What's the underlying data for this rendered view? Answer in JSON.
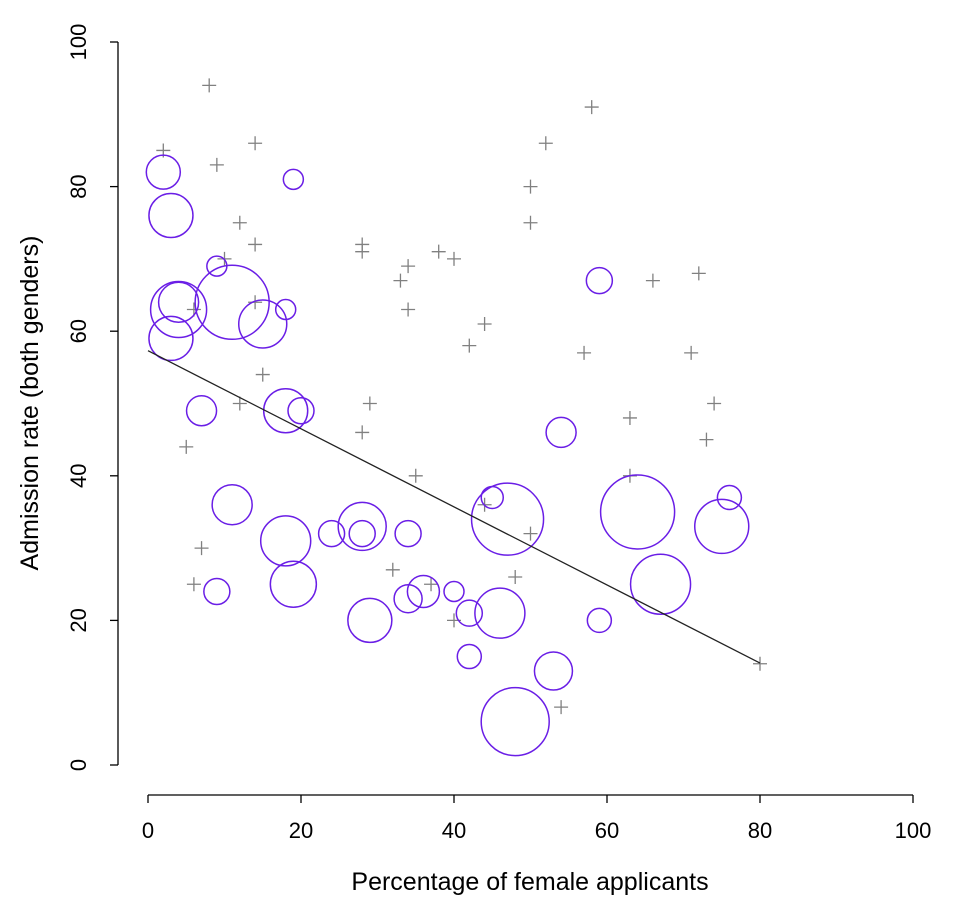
{
  "chart_data": {
    "type": "scatter",
    "title": "",
    "xlabel": "Percentage of female applicants",
    "ylabel": "Admission rate (both genders)",
    "xlim": [
      0,
      100
    ],
    "ylim": [
      0,
      100
    ],
    "xticks": [
      "0",
      "20",
      "40",
      "60",
      "80",
      "100"
    ],
    "yticks": [
      "0",
      "20",
      "40",
      "60",
      "80",
      "100"
    ],
    "grid": false,
    "colors": {
      "circles": "#6a1ee6",
      "plus": "#808080",
      "line": "#222222"
    },
    "plus_points": [
      [
        2,
        85
      ],
      [
        8,
        94
      ],
      [
        9,
        83
      ],
      [
        14,
        86
      ],
      [
        12,
        75
      ],
      [
        14,
        72
      ],
      [
        10,
        70
      ],
      [
        6,
        63
      ],
      [
        14,
        64
      ],
      [
        15,
        54
      ],
      [
        12,
        50
      ],
      [
        5,
        44
      ],
      [
        7,
        30
      ],
      [
        6,
        25
      ],
      [
        28,
        72
      ],
      [
        28,
        71
      ],
      [
        33,
        67
      ],
      [
        34,
        69
      ],
      [
        34,
        63
      ],
      [
        38,
        71
      ],
      [
        40,
        70
      ],
      [
        44,
        61
      ],
      [
        42,
        58
      ],
      [
        29,
        50
      ],
      [
        28,
        46
      ],
      [
        35,
        40
      ],
      [
        44,
        36
      ],
      [
        32,
        27
      ],
      [
        37,
        25
      ],
      [
        40,
        20
      ],
      [
        48,
        26
      ],
      [
        50,
        32
      ],
      [
        50,
        80
      ],
      [
        50,
        75
      ],
      [
        52,
        86
      ],
      [
        58,
        91
      ],
      [
        57,
        57
      ],
      [
        66,
        67
      ],
      [
        72,
        68
      ],
      [
        71,
        57
      ],
      [
        63,
        48
      ],
      [
        63,
        40
      ],
      [
        74,
        50
      ],
      [
        73,
        45
      ],
      [
        54,
        8
      ],
      [
        80,
        14
      ]
    ],
    "circle_points": [
      {
        "x": 2,
        "y": 82,
        "size": 17
      },
      {
        "x": 3,
        "y": 76,
        "size": 22
      },
      {
        "x": 4,
        "y": 63,
        "size": 28
      },
      {
        "x": 4,
        "y": 64,
        "size": 20
      },
      {
        "x": 3,
        "y": 59,
        "size": 22
      },
      {
        "x": 9,
        "y": 69,
        "size": 10
      },
      {
        "x": 11,
        "y": 64,
        "size": 37
      },
      {
        "x": 15,
        "y": 61,
        "size": 24
      },
      {
        "x": 18,
        "y": 63,
        "size": 10
      },
      {
        "x": 19,
        "y": 81,
        "size": 10
      },
      {
        "x": 7,
        "y": 49,
        "size": 15
      },
      {
        "x": 18,
        "y": 49,
        "size": 22
      },
      {
        "x": 20,
        "y": 49,
        "size": 13
      },
      {
        "x": 11,
        "y": 36,
        "size": 20
      },
      {
        "x": 18,
        "y": 31,
        "size": 25
      },
      {
        "x": 19,
        "y": 25,
        "size": 23
      },
      {
        "x": 9,
        "y": 24,
        "size": 13
      },
      {
        "x": 24,
        "y": 32,
        "size": 13
      },
      {
        "x": 28,
        "y": 33,
        "size": 24
      },
      {
        "x": 28,
        "y": 32,
        "size": 13
      },
      {
        "x": 34,
        "y": 32,
        "size": 13
      },
      {
        "x": 29,
        "y": 20,
        "size": 22
      },
      {
        "x": 34,
        "y": 23,
        "size": 14
      },
      {
        "x": 36,
        "y": 24,
        "size": 16
      },
      {
        "x": 40,
        "y": 24,
        "size": 10
      },
      {
        "x": 42,
        "y": 21,
        "size": 13
      },
      {
        "x": 42,
        "y": 15,
        "size": 12
      },
      {
        "x": 45,
        "y": 37,
        "size": 11
      },
      {
        "x": 47,
        "y": 34,
        "size": 36
      },
      {
        "x": 46,
        "y": 21,
        "size": 25
      },
      {
        "x": 48,
        "y": 6,
        "size": 34
      },
      {
        "x": 53,
        "y": 13,
        "size": 19
      },
      {
        "x": 54,
        "y": 46,
        "size": 15
      },
      {
        "x": 59,
        "y": 67,
        "size": 13
      },
      {
        "x": 59,
        "y": 20,
        "size": 12
      },
      {
        "x": 64,
        "y": 35,
        "size": 37
      },
      {
        "x": 67,
        "y": 25,
        "size": 30
      },
      {
        "x": 75,
        "y": 33,
        "size": 27
      },
      {
        "x": 76,
        "y": 37,
        "size": 12
      }
    ],
    "fit_line": {
      "x": [
        0,
        80
      ],
      "y": [
        57.3,
        14.1
      ]
    }
  }
}
